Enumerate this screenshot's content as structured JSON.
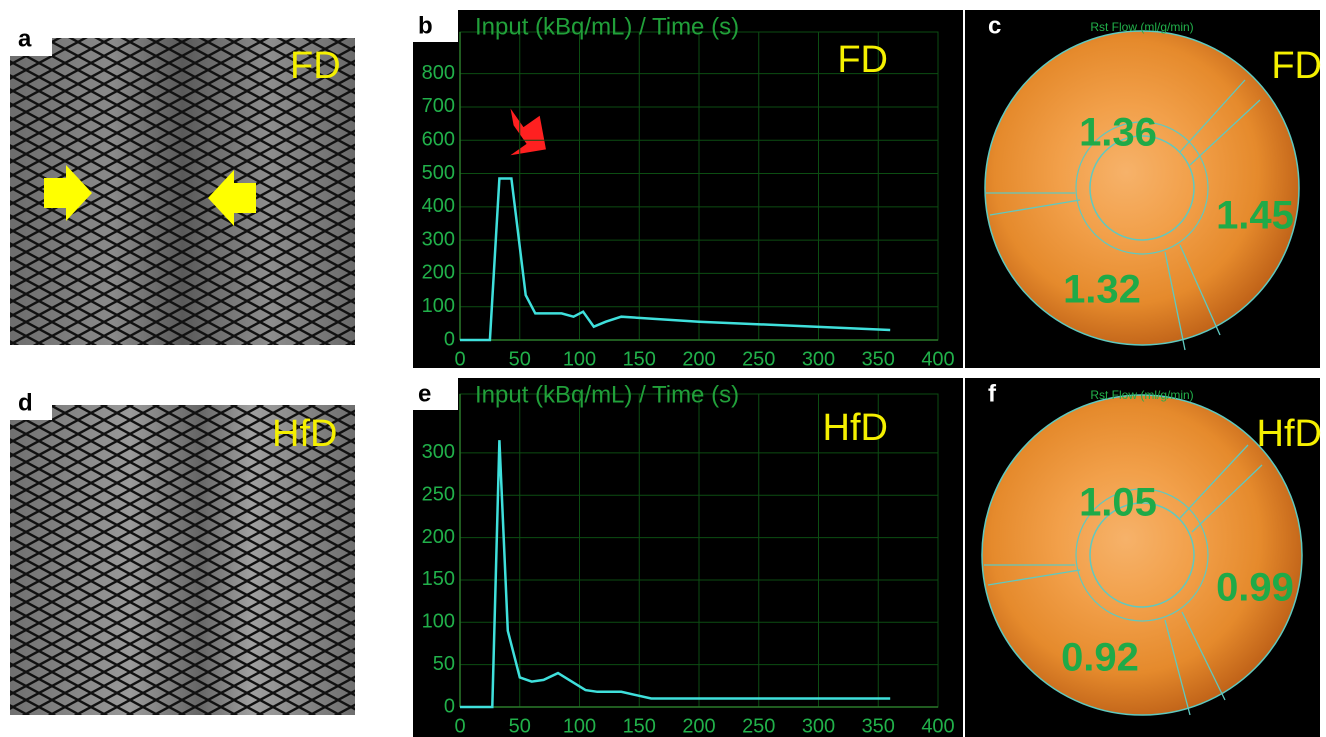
{
  "image_panels": [
    {
      "letter": "a",
      "label": "FD"
    },
    {
      "letter": "d",
      "label": "HfD"
    }
  ],
  "chart_data": [
    {
      "type": "line",
      "letter": "b",
      "title": "Input (kBq/mL)  / Time (s)",
      "label": "FD",
      "x": [
        0,
        25,
        33,
        43,
        55,
        63,
        85,
        95,
        103,
        112,
        122,
        135,
        200,
        360
      ],
      "series": [
        {
          "color": "#3fe0dc",
          "values": [
            0,
            0,
            485,
            485,
            135,
            80,
            80,
            70,
            85,
            40,
            55,
            70,
            55,
            30
          ]
        }
      ],
      "xlim": [
        0,
        400
      ],
      "xticks": [
        0,
        50,
        100,
        150,
        200,
        250,
        300,
        350,
        400
      ],
      "ylim": [
        0,
        850
      ],
      "yticks": [
        0,
        100,
        200,
        300,
        400,
        500,
        600,
        700,
        800
      ],
      "grid": true
    },
    {
      "type": "line",
      "letter": "e",
      "title": "Input (kBq/mL)  / Time (s)",
      "label": "HfD",
      "x": [
        0,
        20,
        27,
        33,
        40,
        50,
        60,
        70,
        82,
        105,
        115,
        135,
        160,
        360
      ],
      "series": [
        {
          "color": "#3fe0dc",
          "values": [
            0,
            0,
            0,
            315,
            90,
            35,
            30,
            32,
            40,
            20,
            18,
            18,
            10,
            10
          ]
        }
      ],
      "xlim": [
        0,
        400
      ],
      "xticks": [
        0,
        50,
        100,
        150,
        200,
        250,
        300,
        350,
        400
      ],
      "ylim": [
        0,
        340
      ],
      "yticks": [
        0,
        50,
        100,
        150,
        200,
        250,
        300
      ],
      "grid": true
    }
  ],
  "polar_maps": [
    {
      "letter": "c",
      "title": "Rst Flow (ml/g/min)",
      "label": "FD",
      "values": [
        1.36,
        1.45,
        1.32
      ]
    },
    {
      "letter": "f",
      "title": "Rst Flow (ml/g/min)",
      "label": "HfD",
      "values": [
        1.05,
        0.99,
        0.92
      ]
    }
  ]
}
